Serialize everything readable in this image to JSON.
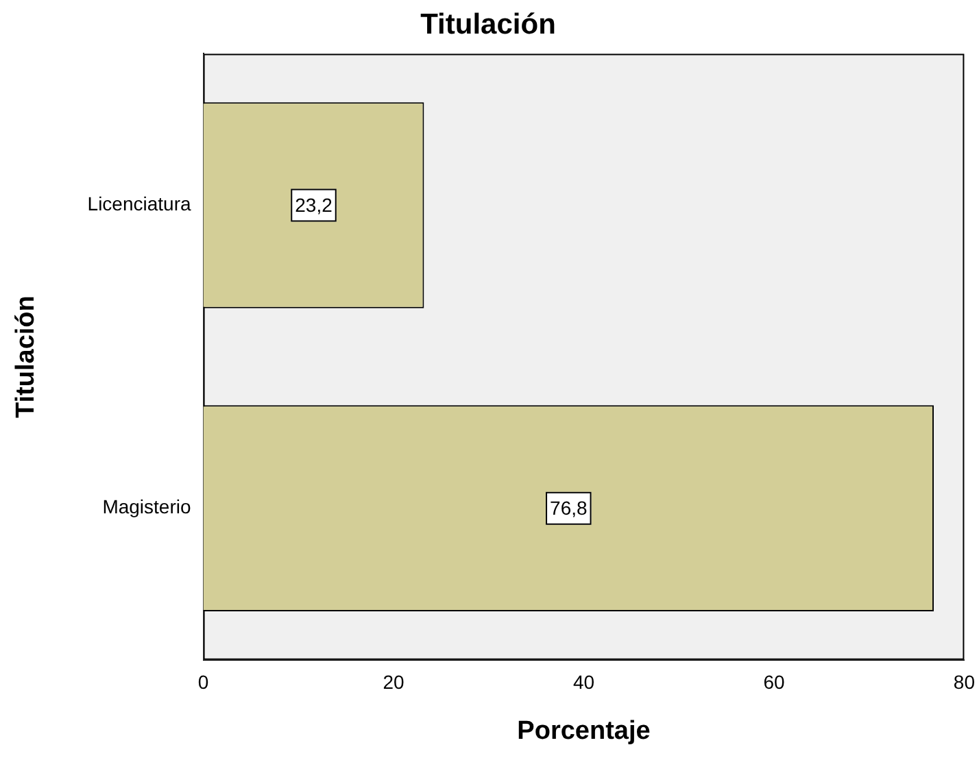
{
  "chart_data": {
    "type": "bar",
    "orientation": "horizontal",
    "title": "Titulación",
    "xlabel": "Porcentaje",
    "ylabel": "Titulación",
    "categories": [
      "Licenciatura",
      "Magisterio"
    ],
    "values": [
      23.2,
      76.8
    ],
    "value_labels": [
      "23,2",
      "76,8"
    ],
    "color": "#d3ce97",
    "xlim": [
      0,
      80
    ],
    "xticks": [
      0,
      20,
      40,
      60,
      80
    ],
    "grid": false,
    "legend": false
  }
}
